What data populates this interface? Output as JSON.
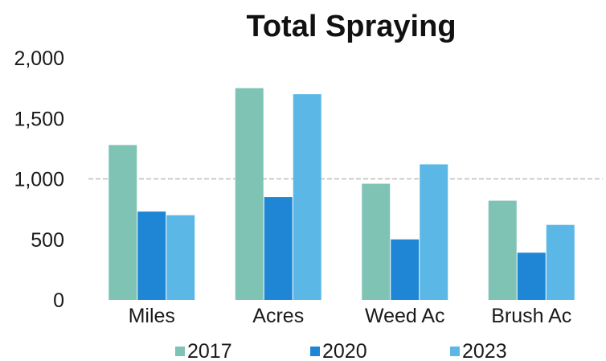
{
  "chart_data": {
    "type": "bar",
    "title": "Total Spraying",
    "xlabel": "",
    "ylabel": "",
    "categories": [
      "Miles",
      "Acres",
      "Weed Ac",
      "Brush Ac"
    ],
    "series": [
      {
        "name": "2017",
        "color": "#7fc3b4",
        "values": [
          1280,
          1750,
          960,
          820
        ]
      },
      {
        "name": "2020",
        "color": "#1f86d6",
        "values": [
          730,
          850,
          500,
          390
        ]
      },
      {
        "name": "2023",
        "color": "#5bb8e6",
        "values": [
          700,
          1700,
          1120,
          620
        ]
      }
    ],
    "ylim": [
      0,
      2000
    ],
    "yticks": [
      0,
      500,
      1000,
      1500,
      2000
    ],
    "ytick_labels": [
      "0",
      "500",
      "1,000",
      "1,500",
      "2,000"
    ],
    "grid": "major y at 1,000",
    "legend": "bottom"
  }
}
